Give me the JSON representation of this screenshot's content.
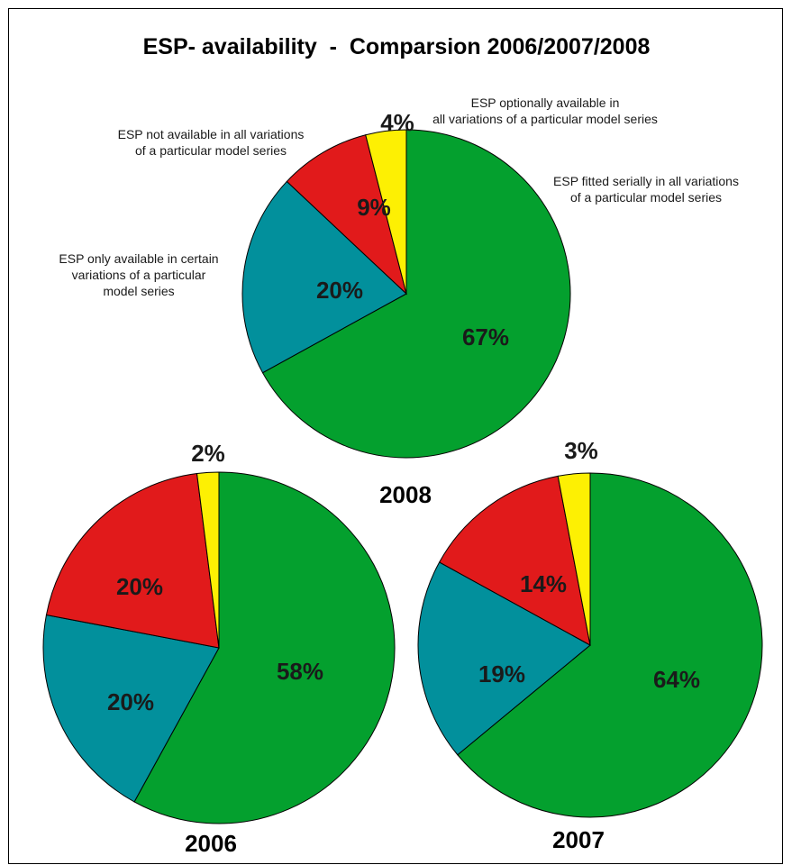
{
  "chart_data": {
    "type": "pie",
    "title": "ESP- availability  -  Comparsion 2006/2007/2008",
    "categories": [
      "ESP fitted serially in all variations of a particular model series",
      "ESP only available in certain variations of a particular model series",
      "ESP not available in all variations of a particular model series",
      "ESP optionally available in all variations of a particular model series"
    ],
    "legend_lines": [
      [
        "ESP fitted serially in all variations",
        "of a particular model series"
      ],
      [
        "ESP only available in certain",
        "variations of a particular",
        "model series"
      ],
      [
        "ESP not available in all variations",
        "of a particular model series"
      ],
      [
        "ESP optionally available in",
        "all variations of a particular model series"
      ]
    ],
    "colors": [
      "#04a02e",
      "#02909c",
      "#e11a1b",
      "#fdf003"
    ],
    "pies": [
      {
        "year": "2008",
        "values": [
          67,
          20,
          9,
          4
        ],
        "labels": [
          "67%",
          "20%",
          "9%",
          "4%"
        ]
      },
      {
        "year": "2006",
        "values": [
          58,
          20,
          20,
          2
        ],
        "labels": [
          "58%",
          "20%",
          "20%",
          "2%"
        ]
      },
      {
        "year": "2007",
        "values": [
          64,
          19,
          14,
          3
        ],
        "labels": [
          "64%",
          "19%",
          "14%",
          "3%"
        ]
      }
    ]
  }
}
